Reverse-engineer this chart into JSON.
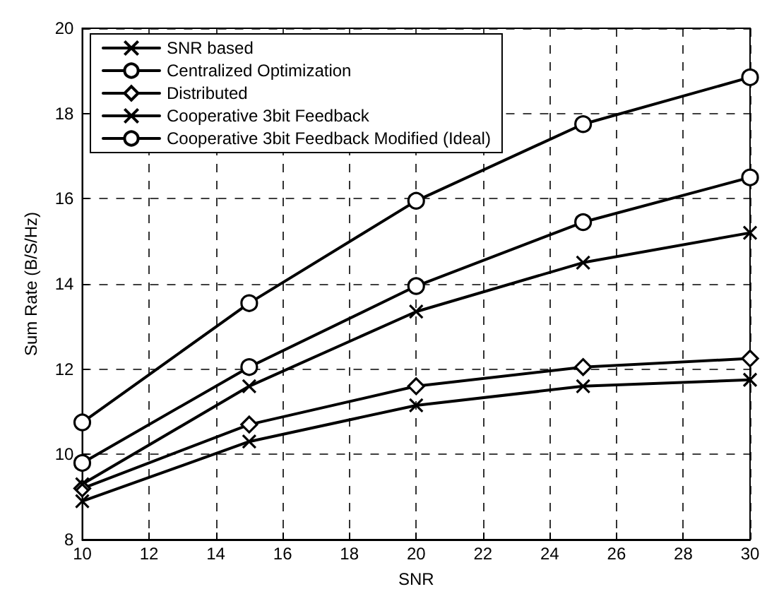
{
  "chart_data": {
    "type": "line",
    "xlabel": "SNR",
    "ylabel": "Sum Rate (B/S/Hz)",
    "x": [
      10,
      15,
      20,
      25,
      30
    ],
    "series": [
      {
        "name": "SNR based",
        "color": "#000000",
        "marker": "cross",
        "values": [
          8.9,
          10.3,
          11.15,
          11.6,
          11.75
        ]
      },
      {
        "name": "Centralized Optimization",
        "color": "#000000",
        "marker": "circle",
        "values": [
          9.8,
          12.05,
          13.95,
          15.45,
          16.5
        ]
      },
      {
        "name": "Distributed",
        "color": "#000000",
        "marker": "diamond",
        "values": [
          9.2,
          10.7,
          11.6,
          12.05,
          12.25
        ]
      },
      {
        "name": "Cooperative 3bit Feedback",
        "color": "#000000",
        "marker": "cross",
        "values": [
          9.3,
          11.6,
          13.35,
          14.5,
          15.2
        ]
      },
      {
        "name": "Cooperative 3bit Feedback Modified (Ideal)",
        "color": "#000000",
        "marker": "circle",
        "values": [
          10.75,
          13.55,
          15.95,
          17.75,
          18.85
        ]
      }
    ],
    "xlim": [
      10,
      30
    ],
    "xticks": [
      10,
      12,
      14,
      16,
      18,
      20,
      22,
      24,
      26,
      28,
      30
    ],
    "ylim": [
      8,
      20
    ],
    "yticks": [
      8,
      10,
      12,
      14,
      16,
      18,
      20
    ],
    "grid": true,
    "legend": "top left",
    "line_style": "solid"
  }
}
